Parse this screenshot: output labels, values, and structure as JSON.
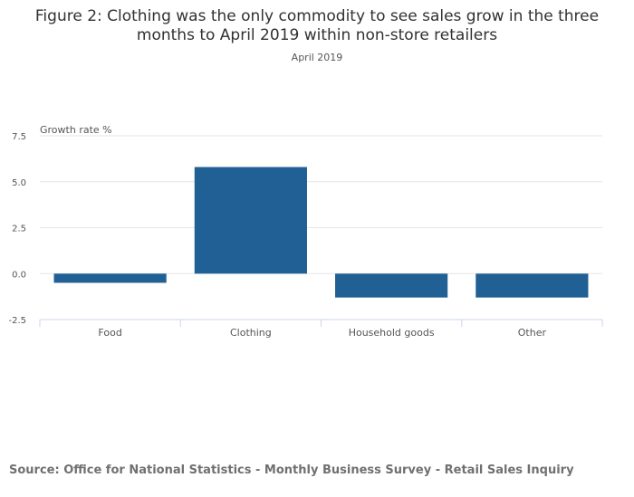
{
  "title": "Figure 2: Clothing was the only commodity to see sales grow in the three months to April 2019 within non-store retailers",
  "subtitle": "April 2019",
  "source": "Source: Office for National Statistics - Monthly Business Survey - Retail Sales Inquiry",
  "colors": {
    "bar": "#206095",
    "grid": "#e6e6e6",
    "axis": "#ccd6eb",
    "text": "#555555"
  },
  "chart_data": {
    "type": "bar",
    "title": "Figure 2: Clothing was the only commodity to see sales grow in the three months to April 2019 within non-store retailers",
    "subtitle": "April 2019",
    "ylabel": "Growth rate %",
    "xlabel": "",
    "categories": [
      "Food",
      "Clothing",
      "Household goods",
      "Other"
    ],
    "values": [
      -0.5,
      5.8,
      -1.3,
      -1.3
    ],
    "ylim": [
      -2.5,
      7.5
    ],
    "yticks": [
      -2.5,
      0.0,
      2.5,
      5.0,
      7.5
    ],
    "ytick_labels": [
      "-2.5",
      "0.0",
      "2.5",
      "5.0",
      "7.5"
    ],
    "grid": true,
    "legend": "none"
  }
}
